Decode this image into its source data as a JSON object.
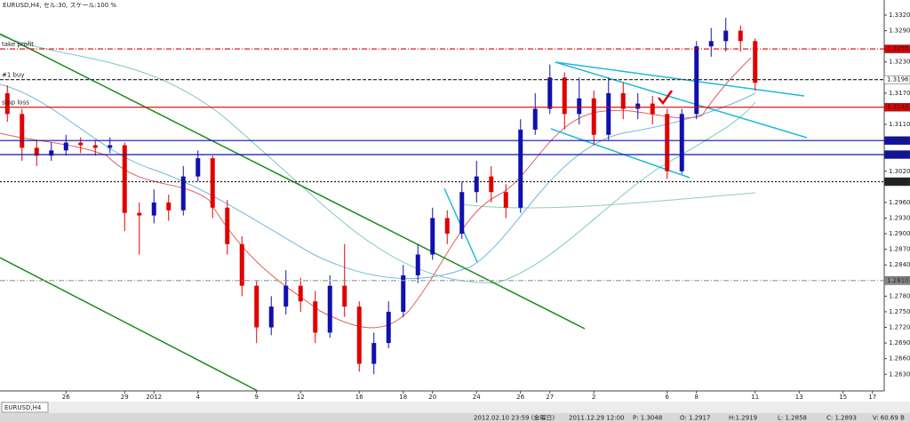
{
  "chart_data": {
    "type": "candlestick",
    "header": "EURUSD,H4, セル:30, スケール:100 %",
    "categories": [
      null,
      null,
      null,
      null,
      "26",
      null,
      null,
      null,
      "29",
      null,
      "2012",
      null,
      null,
      "4",
      null,
      null,
      null,
      "9",
      null,
      null,
      "12",
      null,
      null,
      null,
      "16",
      null,
      null,
      "18",
      null,
      "20",
      null,
      null,
      "24",
      null,
      null,
      "26",
      null,
      "27",
      null,
      null,
      "2",
      null,
      null,
      null,
      null,
      "6",
      null,
      "8",
      null,
      null,
      null,
      "11",
      null,
      null,
      "13",
      null,
      null,
      "15",
      null,
      "17"
    ],
    "open": [
      1.317,
      1.313,
      1.3065,
      1.305,
      1.306,
      1.3075,
      1.307,
      1.3065,
      1.307,
      1.294,
      1.2935,
      1.296,
      1.2945,
      1.301,
      1.3045,
      1.295,
      1.288,
      1.28,
      1.272,
      1.276,
      1.28,
      1.277,
      1.271,
      1.28,
      1.276,
      1.265,
      1.269,
      1.275,
      1.282,
      1.286,
      1.293,
      1.29,
      1.298,
      1.301,
      1.298,
      1.295,
      1.31,
      1.314,
      1.32,
      1.313,
      1.316,
      1.309,
      1.317,
      1.314,
      1.315,
      1.313,
      1.302,
      1.313,
      1.326,
      1.327,
      1.329,
      1.327,
      null,
      null,
      null,
      null,
      null,
      null,
      null,
      null
    ],
    "high": [
      1.3185,
      1.314,
      1.308,
      1.3075,
      1.309,
      1.3085,
      1.308,
      1.3085,
      1.3075,
      1.296,
      1.2985,
      1.2975,
      1.303,
      1.306,
      1.305,
      1.2965,
      1.2895,
      1.281,
      1.278,
      1.283,
      1.2815,
      1.279,
      1.282,
      1.288,
      1.277,
      1.271,
      1.277,
      1.284,
      1.288,
      1.295,
      1.2945,
      1.3,
      1.304,
      1.303,
      1.2995,
      1.312,
      1.317,
      1.3225,
      1.321,
      1.32,
      1.3175,
      1.32,
      1.319,
      1.317,
      1.3165,
      1.314,
      1.314,
      1.327,
      1.3295,
      1.3315,
      1.33,
      1.3275,
      null,
      null,
      null,
      null,
      null,
      null,
      null,
      null
    ],
    "low": [
      1.3115,
      1.304,
      1.303,
      1.304,
      1.305,
      1.3055,
      1.305,
      1.3055,
      1.2905,
      1.286,
      1.292,
      1.2925,
      1.2935,
      1.3,
      1.293,
      1.286,
      1.278,
      1.269,
      1.2705,
      1.2745,
      1.275,
      1.269,
      1.27,
      1.274,
      1.2635,
      1.263,
      1.268,
      1.274,
      1.2805,
      1.285,
      1.288,
      1.289,
      1.296,
      1.296,
      1.293,
      1.294,
      1.309,
      1.313,
      1.31,
      1.311,
      1.307,
      1.308,
      1.312,
      1.312,
      1.311,
      1.3005,
      1.3015,
      1.312,
      1.324,
      1.325,
      1.325,
      1.3175,
      null,
      null,
      null,
      null,
      null,
      null,
      null,
      null
    ],
    "close": [
      1.313,
      1.3065,
      1.305,
      1.306,
      1.3075,
      1.307,
      1.3065,
      1.307,
      1.294,
      1.2935,
      1.296,
      1.2945,
      1.301,
      1.3045,
      1.295,
      1.288,
      1.28,
      1.272,
      1.276,
      1.28,
      1.277,
      1.271,
      1.28,
      1.276,
      1.265,
      1.269,
      1.275,
      1.282,
      1.286,
      1.293,
      1.29,
      1.298,
      1.301,
      1.298,
      1.295,
      1.31,
      1.314,
      1.32,
      1.313,
      1.316,
      1.309,
      1.317,
      1.314,
      1.315,
      1.313,
      1.302,
      1.313,
      1.326,
      1.327,
      1.329,
      1.327,
      1.319,
      null,
      null,
      null,
      null,
      null,
      null,
      null,
      null
    ],
    "up_color": "#1010b0",
    "down_color": "#e00000",
    "ylim": [
      1.2598,
      1.3349
    ],
    "yticks": [
      {
        "value": 1.263,
        "label": "1.2630"
      },
      {
        "value": 1.266,
        "label": "1.2660"
      },
      {
        "value": 1.269,
        "label": "1.2690"
      },
      {
        "value": 1.272,
        "label": "1.2720"
      },
      {
        "value": 1.275,
        "label": "1.2750"
      },
      {
        "value": 1.278,
        "label": "1.2780"
      },
      {
        "value": 1.284,
        "label": "1.2840"
      },
      {
        "value": 1.287,
        "label": "1.2870"
      },
      {
        "value": 1.29,
        "label": "1.2900"
      },
      {
        "value": 1.293,
        "label": "1.2930"
      },
      {
        "value": 1.296,
        "label": "1.2960"
      },
      {
        "value": 1.302,
        "label": "1.3020"
      },
      {
        "value": 1.311,
        "label": "1.3110"
      },
      {
        "value": 1.317,
        "label": "1.3170"
      },
      {
        "value": 1.323,
        "label": "1.3230"
      },
      {
        "value": 1.329,
        "label": "1.3290"
      },
      {
        "value": 1.332,
        "label": "1.3320"
      }
    ],
    "levels": [
      {
        "value": 1.3255,
        "label": "1.3255",
        "name": "take profit",
        "color": "#e00000",
        "dash": "6 2 1 2",
        "box": "#e00000"
      },
      {
        "value": 1.3196,
        "label": "1.3196",
        "name": "#1 buy",
        "color": "#333333",
        "dash": "4 2",
        "box": "#ffffff"
      },
      {
        "value": 1.3143,
        "label": "1.3143",
        "name": "stop loss",
        "color": "#e00000",
        "dash": "",
        "box": "#e00000"
      },
      {
        "value": 1.3079,
        "label": "1.3079",
        "color": "#1010b0",
        "dash": "",
        "box": "#1010b0"
      },
      {
        "value": 1.3052,
        "label": "1.3052",
        "color": "#1010b0",
        "dash": "",
        "box": "#1010b0"
      },
      {
        "value": 1.3,
        "label": "1.3000",
        "color": "#222222",
        "dash": "2 2",
        "box": "#222222"
      },
      {
        "value": 1.281,
        "label": "1.2810",
        "color": "#999999",
        "dash": "6 2 1 2",
        "box": "#888888"
      }
    ],
    "tab": "EURUSD,H4",
    "status": [
      "2012.02.10 23:59 (金曜日)",
      "2011.12.29 12:00",
      "P: 1.3048",
      "O: 1.2917",
      "H:1.2919",
      "L: 1.2858",
      "C: 1.2893",
      "V: 60.69 B"
    ]
  }
}
